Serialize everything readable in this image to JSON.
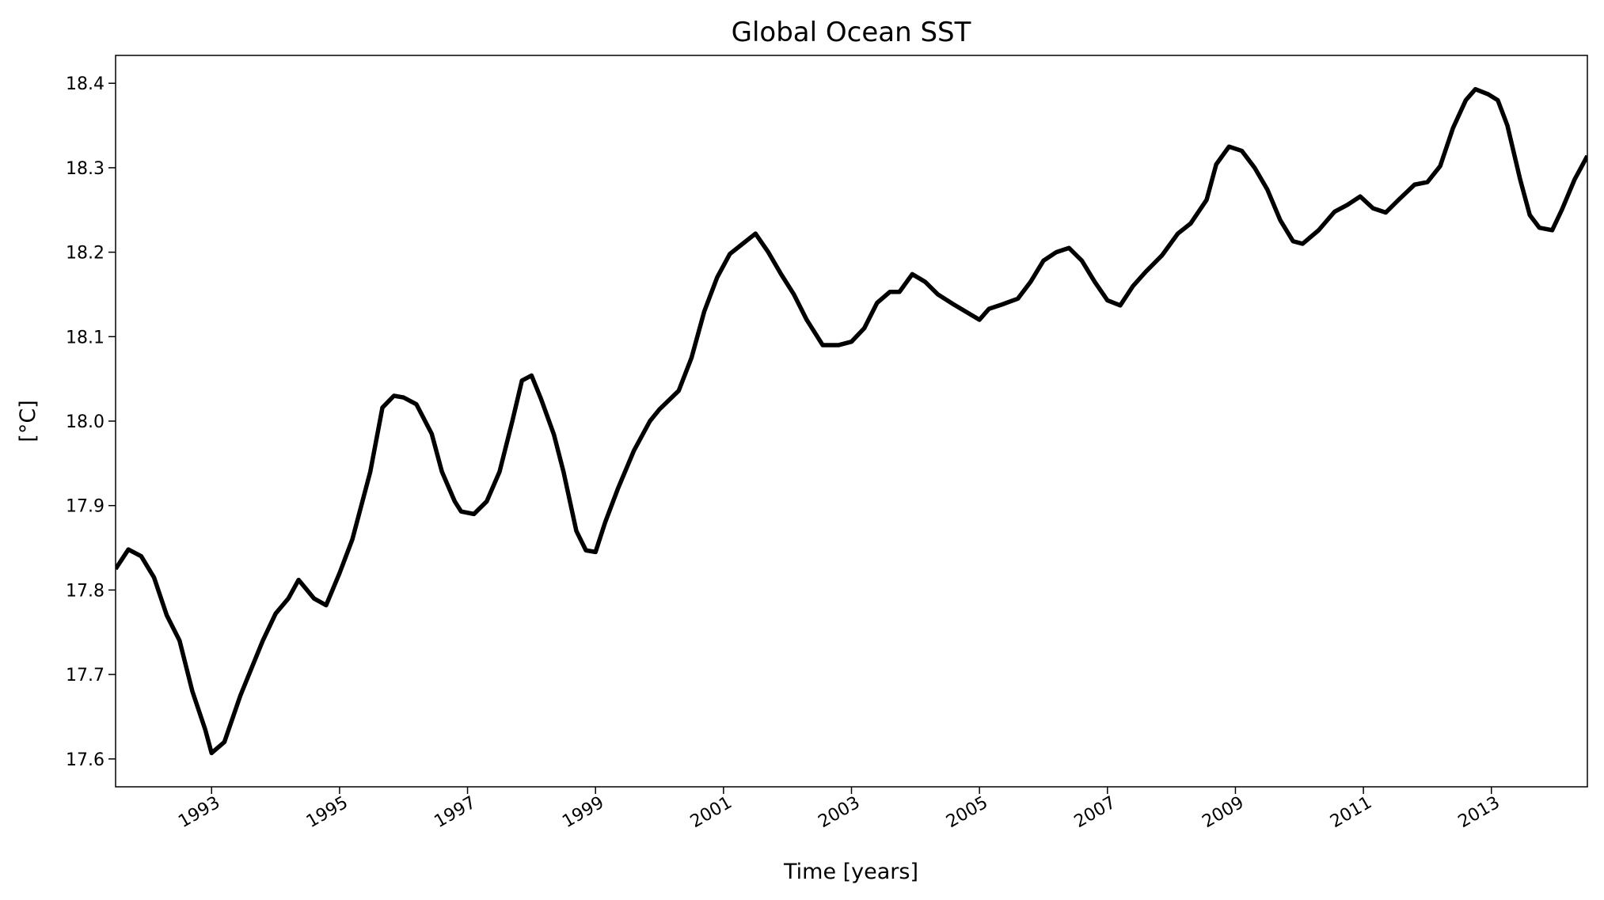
{
  "chart_data": {
    "type": "line",
    "title": "Global Ocean SST",
    "xlabel": "Time [years]",
    "ylabel": "[°C]",
    "x": [
      1991.5,
      1991.7,
      1991.9,
      1992.1,
      1992.3,
      1992.5,
      1992.7,
      1992.9,
      1993.0,
      1993.2,
      1993.45,
      1993.8,
      1994.0,
      1994.2,
      1994.36,
      1994.6,
      1994.79,
      1995.0,
      1995.2,
      1995.48,
      1995.67,
      1995.85,
      1996.0,
      1996.2,
      1996.44,
      1996.6,
      1996.8,
      1996.9,
      1997.1,
      1997.3,
      1997.5,
      1997.7,
      1997.85,
      1998.0,
      1998.15,
      1998.35,
      1998.5,
      1998.7,
      1998.85,
      1999.0,
      1999.15,
      1999.35,
      1999.6,
      1999.85,
      2000.0,
      2000.3,
      2000.5,
      2000.7,
      2000.9,
      2001.1,
      2001.3,
      2001.5,
      2001.7,
      2001.9,
      2002.1,
      2002.3,
      2002.55,
      2002.8,
      2003.0,
      2003.2,
      2003.4,
      2003.6,
      2003.75,
      2003.95,
      2004.15,
      2004.35,
      2004.6,
      2004.8,
      2005.0,
      2005.15,
      2005.35,
      2005.6,
      2005.8,
      2006.0,
      2006.2,
      2006.4,
      2006.6,
      2006.8,
      2007.0,
      2007.2,
      2007.4,
      2007.6,
      2007.85,
      2008.1,
      2008.3,
      2008.55,
      2008.7,
      2008.9,
      2009.1,
      2009.3,
      2009.5,
      2009.7,
      2009.9,
      2010.05,
      2010.3,
      2010.55,
      2010.75,
      2010.95,
      2011.15,
      2011.35,
      2011.55,
      2011.8,
      2012.0,
      2012.2,
      2012.4,
      2012.6,
      2012.75,
      2012.95,
      2013.1,
      2013.25,
      2013.45,
      2013.6,
      2013.75,
      2013.95,
      2014.1,
      2014.3,
      2014.5
    ],
    "series": [
      {
        "name": "SST",
        "color": "#000000",
        "values": [
          17.825,
          17.848,
          17.84,
          17.815,
          17.77,
          17.74,
          17.68,
          17.635,
          17.607,
          17.62,
          17.675,
          17.74,
          17.772,
          17.79,
          17.812,
          17.79,
          17.782,
          17.82,
          17.86,
          17.94,
          18.016,
          18.03,
          18.028,
          18.02,
          17.985,
          17.94,
          17.905,
          17.893,
          17.89,
          17.905,
          17.94,
          18.0,
          18.048,
          18.054,
          18.026,
          17.984,
          17.94,
          17.87,
          17.847,
          17.845,
          17.88,
          17.92,
          17.965,
          18.0,
          18.014,
          18.036,
          18.075,
          18.13,
          18.17,
          18.198,
          18.21,
          18.222,
          18.2,
          18.174,
          18.15,
          18.12,
          18.09,
          18.09,
          18.094,
          18.11,
          18.14,
          18.153,
          18.153,
          18.174,
          18.165,
          18.15,
          18.138,
          18.129,
          18.12,
          18.133,
          18.138,
          18.145,
          18.165,
          18.19,
          18.2,
          18.205,
          18.19,
          18.165,
          18.143,
          18.137,
          18.16,
          18.177,
          18.196,
          18.222,
          18.234,
          18.262,
          18.304,
          18.325,
          18.32,
          18.3,
          18.274,
          18.238,
          18.213,
          18.21,
          18.226,
          18.248,
          18.256,
          18.266,
          18.252,
          18.247,
          18.262,
          18.28,
          18.283,
          18.302,
          18.347,
          18.38,
          18.393,
          18.387,
          18.38,
          18.35,
          18.286,
          18.244,
          18.229,
          18.226,
          18.25,
          18.286,
          18.314
        ]
      }
    ],
    "xlim": [
      1991.5,
      2014.5
    ],
    "xticks": [
      1993,
      1995,
      1997,
      1999,
      2001,
      2003,
      2005,
      2007,
      2009,
      2011,
      2013
    ],
    "ylim": [
      17.567,
      18.433
    ],
    "yticks": [
      17.6,
      17.7,
      17.8,
      17.9,
      {
        "value": 18.0,
        "label": "18.0"
      },
      18.1,
      18.2,
      18.3,
      18.4
    ],
    "grid": false
  }
}
